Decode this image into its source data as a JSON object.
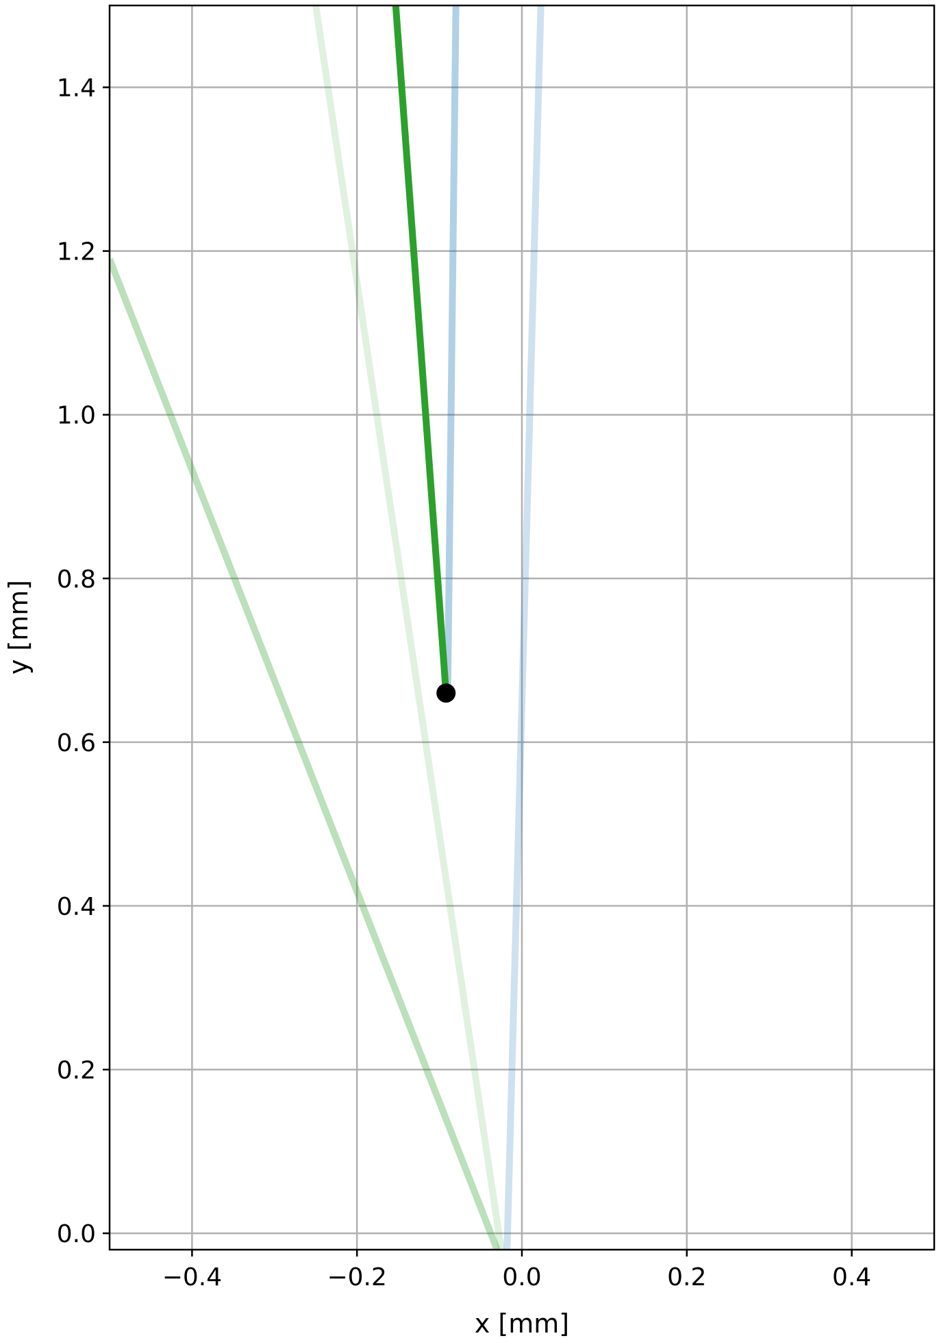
{
  "chart_data": {
    "type": "line",
    "xlabel": "x [mm]",
    "ylabel": "y [mm]",
    "xlim": [
      -0.5,
      0.5
    ],
    "ylim": [
      -0.02,
      1.5
    ],
    "grid": true,
    "x_ticks": [
      -0.4,
      -0.2,
      0.0,
      0.2,
      0.4
    ],
    "x_tick_labels": [
      "−0.4",
      "−0.2",
      "0.0",
      "0.2",
      "0.4"
    ],
    "y_ticks": [
      0.0,
      0.2,
      0.4,
      0.6,
      0.8,
      1.0,
      1.2,
      1.4
    ],
    "y_tick_labels": [
      "0.0",
      "0.2",
      "0.4",
      "0.6",
      "0.8",
      "1.0",
      "1.2",
      "1.4"
    ],
    "series": [
      {
        "color": "#2ca02c",
        "opacity": 0.32,
        "x": [
          -0.5,
          -0.03
        ],
        "y": [
          1.19,
          -0.02
        ]
      },
      {
        "color": "#2ca02c",
        "opacity": 0.15,
        "x": [
          -0.25,
          -0.025
        ],
        "y": [
          1.5,
          -0.02
        ]
      },
      {
        "color": "#1f77b4",
        "opacity": 0.22,
        "x": [
          0.023,
          -0.018
        ],
        "y": [
          1.5,
          -0.02
        ]
      },
      {
        "color": "#1f77b4",
        "opacity": 0.35,
        "x": [
          -0.08,
          -0.09
        ],
        "y": [
          1.5,
          0.66
        ]
      },
      {
        "color": "#2ca02c",
        "opacity": 1.0,
        "x": [
          -0.153,
          -0.092
        ],
        "y": [
          1.5,
          0.66
        ]
      }
    ],
    "points": [
      {
        "x": -0.092,
        "y": 0.66,
        "color": "#000000"
      }
    ]
  }
}
